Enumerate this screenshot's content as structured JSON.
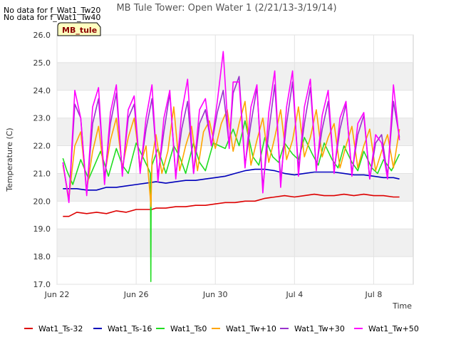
{
  "notes": [
    "No data for f_Wat1_Tw20",
    "No data for f_Wat1_Tw40"
  ],
  "colors": {
    "Wat1_Ts-32": "#dd0000",
    "Wat1_Ts-16": "#0000bb",
    "Wat1_Ts0": "#22dd22",
    "Wat1_Tw+10": "#ffa500",
    "Wat1_Tw+30": "#9932cc",
    "Wat1_Tw+50": "#ff00ff",
    "band": "#f0f0f0",
    "site_badge_bg": "#ffffc0"
  },
  "chart_data": {
    "type": "line",
    "title": "MB Tule Tower: Open Water 1 (2/21/13-3/19/14)",
    "site_label": "MB_tule",
    "xlabel": "Time",
    "ylabel": "Temperature (C)",
    "xlim": [
      0,
      18
    ],
    "ylim": [
      17.0,
      26.0
    ],
    "x_ticks": [
      {
        "value": 0,
        "label": "Jun 22"
      },
      {
        "value": 4,
        "label": "Jun 26"
      },
      {
        "value": 8,
        "label": "Jun 30"
      },
      {
        "value": 12,
        "label": "Jul 4"
      },
      {
        "value": 16,
        "label": "Jul 8"
      }
    ],
    "y_ticks": [
      "17.0",
      "18.0",
      "19.0",
      "20.0",
      "21.0",
      "22.0",
      "23.0",
      "24.0",
      "25.0",
      "26.0"
    ],
    "legend_position": "bottom",
    "series": [
      {
        "name": "Wat1_Ts-32",
        "x": [
          0.3,
          0.6,
          1.0,
          1.5,
          2.0,
          2.5,
          3.0,
          3.5,
          4.0,
          4.5,
          4.78,
          5.0,
          5.5,
          6.0,
          6.5,
          7.0,
          7.5,
          8.0,
          8.5,
          9.0,
          9.5,
          10.0,
          10.5,
          11.0,
          11.5,
          12.0,
          12.5,
          13.0,
          13.5,
          14.0,
          14.5,
          15.0,
          15.5,
          16.0,
          16.5,
          17.0,
          17.3
        ],
        "y": [
          19.45,
          19.45,
          19.6,
          19.55,
          19.6,
          19.55,
          19.65,
          19.6,
          19.7,
          19.7,
          19.7,
          19.75,
          19.75,
          19.8,
          19.8,
          19.85,
          19.85,
          19.9,
          19.95,
          19.95,
          20.0,
          20.0,
          20.1,
          20.15,
          20.2,
          20.15,
          20.2,
          20.25,
          20.2,
          20.2,
          20.25,
          20.2,
          20.25,
          20.2,
          20.2,
          20.15,
          20.15
        ]
      },
      {
        "name": "Wat1_Ts-16",
        "x": [
          0.3,
          1.0,
          1.5,
          2.0,
          2.5,
          3.0,
          3.5,
          4.0,
          4.5,
          5.0,
          5.5,
          6.0,
          6.5,
          7.0,
          7.5,
          8.0,
          8.5,
          9.0,
          9.5,
          10.0,
          10.5,
          11.0,
          11.5,
          12.0,
          12.5,
          13.0,
          13.5,
          14.0,
          14.5,
          15.0,
          15.5,
          16.0,
          16.5,
          17.0,
          17.3
        ],
        "y": [
          20.45,
          20.45,
          20.4,
          20.4,
          20.5,
          20.5,
          20.55,
          20.6,
          20.65,
          20.7,
          20.65,
          20.7,
          20.75,
          20.75,
          20.8,
          20.85,
          20.9,
          21.0,
          21.1,
          21.15,
          21.15,
          21.1,
          21.0,
          20.95,
          21.0,
          21.05,
          21.05,
          21.05,
          21.0,
          20.95,
          20.95,
          20.9,
          20.85,
          20.85,
          20.8
        ]
      },
      {
        "name": "Wat1_Ts0",
        "x": [
          0.3,
          0.5,
          0.8,
          1.2,
          1.6,
          1.9,
          2.2,
          2.6,
          3.0,
          3.3,
          3.6,
          4.0,
          4.4,
          4.6,
          4.72,
          4.74,
          4.76,
          4.78,
          4.8,
          4.85,
          5.1,
          5.5,
          5.9,
          6.2,
          6.5,
          6.9,
          7.2,
          7.5,
          7.9,
          8.2,
          8.5,
          8.9,
          9.2,
          9.5,
          9.9,
          10.2,
          10.5,
          10.9,
          11.2,
          11.5,
          11.9,
          12.2,
          12.5,
          12.9,
          13.2,
          13.5,
          13.9,
          14.2,
          14.5,
          14.9,
          15.2,
          15.5,
          15.9,
          16.2,
          16.5,
          16.9,
          17.3
        ],
        "y": [
          21.55,
          21.1,
          20.6,
          21.5,
          20.8,
          21.3,
          21.8,
          20.9,
          21.9,
          21.3,
          21.0,
          22.1,
          21.5,
          21.2,
          21.0,
          17.1,
          20.6,
          21.0,
          21.3,
          21.4,
          21.9,
          21.0,
          22.0,
          21.6,
          21.0,
          22.1,
          21.4,
          21.1,
          22.1,
          22.0,
          21.9,
          22.6,
          22.0,
          22.9,
          21.6,
          21.3,
          22.3,
          21.6,
          21.4,
          22.1,
          21.7,
          21.5,
          22.3,
          21.7,
          21.3,
          22.1,
          21.5,
          21.2,
          22.0,
          21.4,
          21.1,
          21.8,
          21.2,
          21.0,
          21.5,
          21.1,
          21.7
        ]
      },
      {
        "name": "Wat1_Tw+10",
        "x": [
          0.3,
          0.6,
          0.9,
          1.2,
          1.5,
          1.8,
          2.1,
          2.4,
          2.7,
          3.0,
          3.3,
          3.6,
          3.9,
          4.2,
          4.5,
          4.75,
          4.8,
          5.0,
          5.3,
          5.6,
          5.9,
          6.2,
          6.5,
          6.8,
          7.1,
          7.4,
          7.7,
          8.0,
          8.3,
          8.6,
          8.9,
          9.2,
          9.5,
          9.8,
          10.1,
          10.4,
          10.7,
          11.0,
          11.3,
          11.6,
          11.9,
          12.2,
          12.5,
          12.8,
          13.1,
          13.4,
          13.7,
          14.0,
          14.3,
          14.6,
          14.9,
          15.2,
          15.5,
          15.8,
          16.1,
          16.4,
          16.7,
          17.0,
          17.3
        ],
        "y": [
          21.3,
          20.1,
          22.0,
          22.5,
          20.4,
          21.8,
          22.7,
          20.9,
          22.2,
          23.0,
          21.2,
          22.3,
          23.0,
          21.3,
          22.0,
          19.8,
          21.5,
          22.4,
          21.0,
          21.8,
          23.4,
          21.1,
          22.0,
          22.7,
          21.1,
          22.5,
          22.9,
          21.9,
          22.8,
          23.3,
          21.8,
          22.8,
          23.6,
          21.3,
          22.2,
          23.0,
          21.4,
          22.3,
          23.3,
          21.5,
          22.2,
          23.4,
          21.6,
          22.3,
          23.3,
          21.6,
          22.3,
          22.8,
          21.2,
          22.0,
          22.7,
          21.2,
          22.0,
          22.6,
          21.1,
          21.8,
          22.4,
          21.2,
          22.6
        ]
      },
      {
        "name": "Wat1_Tw+30",
        "x": [
          0.3,
          0.6,
          0.9,
          1.2,
          1.5,
          1.8,
          2.1,
          2.4,
          2.7,
          3.0,
          3.3,
          3.6,
          3.9,
          4.2,
          4.5,
          4.8,
          5.1,
          5.4,
          5.7,
          6.0,
          6.3,
          6.6,
          6.9,
          7.2,
          7.5,
          7.8,
          8.1,
          8.4,
          8.7,
          8.9,
          9.2,
          9.5,
          9.8,
          10.1,
          10.4,
          10.7,
          11.0,
          11.3,
          11.6,
          11.9,
          12.2,
          12.5,
          12.8,
          13.1,
          13.4,
          13.7,
          14.0,
          14.3,
          14.6,
          14.9,
          15.2,
          15.5,
          15.8,
          16.1,
          16.4,
          16.7,
          17.0,
          17.3
        ],
        "y": [
          21.4,
          20.0,
          23.5,
          23.0,
          20.3,
          22.8,
          23.7,
          20.8,
          22.8,
          23.9,
          21.0,
          23.0,
          23.5,
          21.1,
          22.6,
          23.7,
          20.9,
          22.5,
          23.9,
          20.9,
          22.6,
          23.6,
          21.0,
          22.8,
          23.3,
          22.0,
          23.2,
          24.0,
          22.0,
          23.9,
          24.5,
          21.3,
          22.8,
          24.1,
          20.5,
          22.5,
          24.2,
          20.8,
          22.8,
          24.3,
          21.2,
          22.8,
          24.1,
          21.2,
          22.6,
          23.6,
          21.1,
          22.6,
          23.5,
          21.0,
          22.4,
          23.1,
          20.8,
          22.1,
          22.4,
          20.9,
          23.6,
          22.3
        ]
      },
      {
        "name": "Wat1_Tw+50",
        "x": [
          0.3,
          0.6,
          0.9,
          1.2,
          1.5,
          1.8,
          2.1,
          2.4,
          2.7,
          3.0,
          3.3,
          3.6,
          3.9,
          4.2,
          4.5,
          4.8,
          5.1,
          5.4,
          5.7,
          6.0,
          6.3,
          6.6,
          6.9,
          7.2,
          7.5,
          7.8,
          8.1,
          8.4,
          8.7,
          8.9,
          9.2,
          9.5,
          9.8,
          10.1,
          10.4,
          10.7,
          11.0,
          11.3,
          11.6,
          11.9,
          12.2,
          12.5,
          12.8,
          13.1,
          13.4,
          13.7,
          14.0,
          14.3,
          14.6,
          14.9,
          15.2,
          15.5,
          15.8,
          16.1,
          16.4,
          16.7,
          17.0,
          17.3
        ],
        "y": [
          21.4,
          19.95,
          24.0,
          23.0,
          20.2,
          23.4,
          24.1,
          20.6,
          23.2,
          24.2,
          20.9,
          23.3,
          23.8,
          21.0,
          23.0,
          24.2,
          20.7,
          23.0,
          24.0,
          20.8,
          23.2,
          24.4,
          21.0,
          23.3,
          23.7,
          22.0,
          23.6,
          25.4,
          21.9,
          24.3,
          24.3,
          21.2,
          23.4,
          24.2,
          20.3,
          23.2,
          24.7,
          20.5,
          23.4,
          24.7,
          20.9,
          23.4,
          24.4,
          21.1,
          23.1,
          24.0,
          21.0,
          23.0,
          23.6,
          20.9,
          22.8,
          23.2,
          20.8,
          22.4,
          22.1,
          20.8,
          24.2,
          22.2
        ]
      }
    ]
  }
}
